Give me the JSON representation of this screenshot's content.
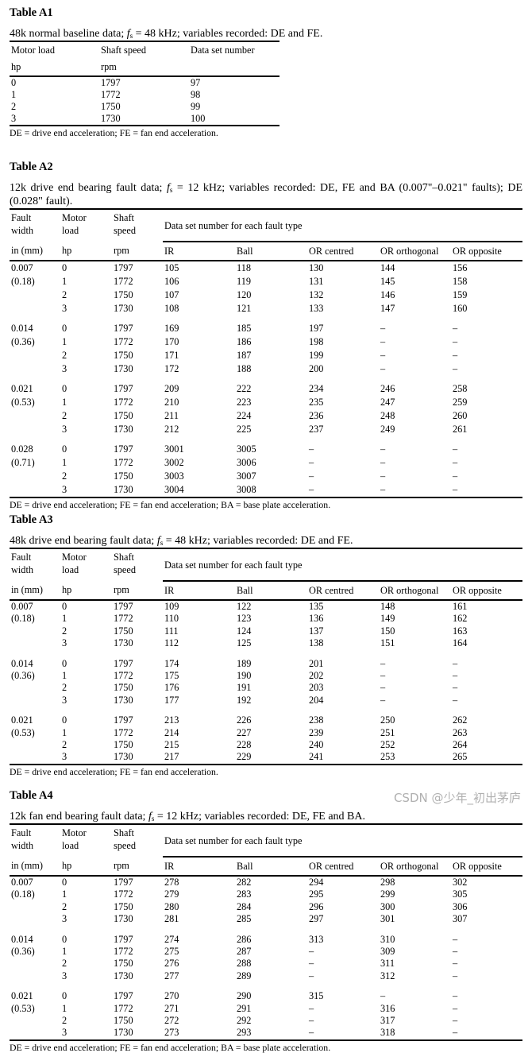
{
  "tables": [
    {
      "title": "Table A1",
      "caption": {
        "before": "48k normal baseline data; ",
        "symbol": "f",
        "sub": "s",
        "after": " = 48 kHz; variables recorded: DE and FE."
      },
      "type": "simple",
      "headers": [
        [
          "Motor load",
          "Shaft speed",
          "Data set number"
        ],
        [
          "hp",
          "rpm",
          ""
        ]
      ],
      "rows": [
        [
          "0",
          "1797",
          "97"
        ],
        [
          "1",
          "1772",
          "98"
        ],
        [
          "2",
          "1750",
          "99"
        ],
        [
          "3",
          "1730",
          "100"
        ]
      ],
      "footnote": "DE = drive end acceleration; FE = fan end acceleration."
    },
    {
      "title": "Table A2",
      "caption": {
        "before": "12k drive end bearing fault data; ",
        "symbol": "f",
        "sub": "s",
        "after": " = 12 kHz; variables recorded: DE, FE and BA (0.007\"–0.021\" faults); DE (0.028\" fault)."
      },
      "type": "fault",
      "header": {
        "fault_width": [
          "Fault",
          "width"
        ],
        "motor_load": [
          "Motor",
          "load"
        ],
        "shaft_speed": [
          "Shaft",
          "speed"
        ],
        "group_label": "Data set number for each fault type",
        "units": [
          "in (mm)",
          "hp",
          "rpm"
        ],
        "fault_types": [
          "IR",
          "Ball",
          "OR centred",
          "OR orthogonal",
          "OR opposite"
        ]
      },
      "groups": [
        {
          "width_in": "0.007",
          "width_mm": "(0.18)",
          "rows": [
            [
              "0",
              "1797",
              "105",
              "118",
              "130",
              "144",
              "156"
            ],
            [
              "1",
              "1772",
              "106",
              "119",
              "131",
              "145",
              "158"
            ],
            [
              "2",
              "1750",
              "107",
              "120",
              "132",
              "146",
              "159"
            ],
            [
              "3",
              "1730",
              "108",
              "121",
              "133",
              "147",
              "160"
            ]
          ]
        },
        {
          "width_in": "0.014",
          "width_mm": "(0.36)",
          "rows": [
            [
              "0",
              "1797",
              "169",
              "185",
              "197",
              "–",
              "–"
            ],
            [
              "1",
              "1772",
              "170",
              "186",
              "198",
              "–",
              "–"
            ],
            [
              "2",
              "1750",
              "171",
              "187",
              "199",
              "–",
              "–"
            ],
            [
              "3",
              "1730",
              "172",
              "188",
              "200",
              "–",
              "–"
            ]
          ]
        },
        {
          "width_in": "0.021",
          "width_mm": "(0.53)",
          "rows": [
            [
              "0",
              "1797",
              "209",
              "222",
              "234",
              "246",
              "258"
            ],
            [
              "1",
              "1772",
              "210",
              "223",
              "235",
              "247",
              "259"
            ],
            [
              "2",
              "1750",
              "211",
              "224",
              "236",
              "248",
              "260"
            ],
            [
              "3",
              "1730",
              "212",
              "225",
              "237",
              "249",
              "261"
            ]
          ]
        },
        {
          "width_in": "0.028",
          "width_mm": "(0.71)",
          "rows": [
            [
              "0",
              "1797",
              "3001",
              "3005",
              "–",
              "–",
              "–"
            ],
            [
              "1",
              "1772",
              "3002",
              "3006",
              "–",
              "–",
              "–"
            ],
            [
              "2",
              "1750",
              "3003",
              "3007",
              "–",
              "–",
              "–"
            ],
            [
              "3",
              "1730",
              "3004",
              "3008",
              "–",
              "–",
              "–"
            ]
          ]
        }
      ],
      "footnote": "DE = drive end acceleration; FE = fan end acceleration; BA = base plate acceleration."
    },
    {
      "title": "Table A3",
      "caption": {
        "before": "48k drive end bearing fault data; ",
        "symbol": "f",
        "sub": "s",
        "after": " = 48 kHz; variables recorded: DE and FE."
      },
      "type": "fault",
      "header": {
        "fault_width": [
          "Fault",
          "width"
        ],
        "motor_load": [
          "Motor",
          "load"
        ],
        "shaft_speed": [
          "Shaft",
          "speed"
        ],
        "group_label": "Data set number for each fault type",
        "units": [
          "in (mm)",
          "hp",
          "rpm"
        ],
        "fault_types": [
          "IR",
          "Ball",
          "OR centred",
          "OR orthogonal",
          "OR opposite"
        ]
      },
      "groups": [
        {
          "width_in": "0.007",
          "width_mm": "(0.18)",
          "rows": [
            [
              "0",
              "1797",
              "109",
              "122",
              "135",
              "148",
              "161"
            ],
            [
              "1",
              "1772",
              "110",
              "123",
              "136",
              "149",
              "162"
            ],
            [
              "2",
              "1750",
              "111",
              "124",
              "137",
              "150",
              "163"
            ],
            [
              "3",
              "1730",
              "112",
              "125",
              "138",
              "151",
              "164"
            ]
          ]
        },
        {
          "width_in": "0.014",
          "width_mm": "(0.36)",
          "rows": [
            [
              "0",
              "1797",
              "174",
              "189",
              "201",
              "–",
              "–"
            ],
            [
              "1",
              "1772",
              "175",
              "190",
              "202",
              "–",
              "–"
            ],
            [
              "2",
              "1750",
              "176",
              "191",
              "203",
              "–",
              "–"
            ],
            [
              "3",
              "1730",
              "177",
              "192",
              "204",
              "–",
              "–"
            ]
          ]
        },
        {
          "width_in": "0.021",
          "width_mm": "(0.53)",
          "rows": [
            [
              "0",
              "1797",
              "213",
              "226",
              "238",
              "250",
              "262"
            ],
            [
              "1",
              "1772",
              "214",
              "227",
              "239",
              "251",
              "263"
            ],
            [
              "2",
              "1750",
              "215",
              "228",
              "240",
              "252",
              "264"
            ],
            [
              "3",
              "1730",
              "217",
              "229",
              "241",
              "253",
              "265"
            ]
          ]
        }
      ],
      "footnote": "DE = drive end acceleration; FE = fan end acceleration."
    },
    {
      "title": "Table A4",
      "caption": {
        "before": "12k fan end bearing fault data; ",
        "symbol": "f",
        "sub": "s",
        "after": " = 12 kHz; variables recorded: DE, FE and BA."
      },
      "type": "fault",
      "header": {
        "fault_width": [
          "Fault",
          "width"
        ],
        "motor_load": [
          "Motor",
          "load"
        ],
        "shaft_speed": [
          "Shaft",
          "speed"
        ],
        "group_label": "Data set number for each fault type",
        "units": [
          "in (mm)",
          "hp",
          "rpm"
        ],
        "fault_types": [
          "IR",
          "Ball",
          "OR centred",
          "OR orthogonal",
          "OR opposite"
        ]
      },
      "groups": [
        {
          "width_in": "0.007",
          "width_mm": "(0.18)",
          "rows": [
            [
              "0",
              "1797",
              "278",
              "282",
              "294",
              "298",
              "302"
            ],
            [
              "1",
              "1772",
              "279",
              "283",
              "295",
              "299",
              "305"
            ],
            [
              "2",
              "1750",
              "280",
              "284",
              "296",
              "300",
              "306"
            ],
            [
              "3",
              "1730",
              "281",
              "285",
              "297",
              "301",
              "307"
            ]
          ]
        },
        {
          "width_in": "0.014",
          "width_mm": "(0.36)",
          "rows": [
            [
              "0",
              "1797",
              "274",
              "286",
              "313",
              "310",
              "–"
            ],
            [
              "1",
              "1772",
              "275",
              "287",
              "–",
              "309",
              "–"
            ],
            [
              "2",
              "1750",
              "276",
              "288",
              "–",
              "311",
              "–"
            ],
            [
              "3",
              "1730",
              "277",
              "289",
              "–",
              "312",
              "–"
            ]
          ]
        },
        {
          "width_in": "0.021",
          "width_mm": "(0.53)",
          "rows": [
            [
              "0",
              "1797",
              "270",
              "290",
              "315",
              "–",
              "–"
            ],
            [
              "1",
              "1772",
              "271",
              "291",
              "–",
              "316",
              "–"
            ],
            [
              "2",
              "1750",
              "272",
              "292",
              "–",
              "317",
              "–"
            ],
            [
              "3",
              "1730",
              "273",
              "293",
              "–",
              "318",
              "–"
            ]
          ]
        }
      ],
      "footnote": "DE = drive end acceleration; FE = fan end acceleration; BA = base plate acceleration."
    }
  ],
  "watermark": "CSDN @少年_初出茅庐"
}
